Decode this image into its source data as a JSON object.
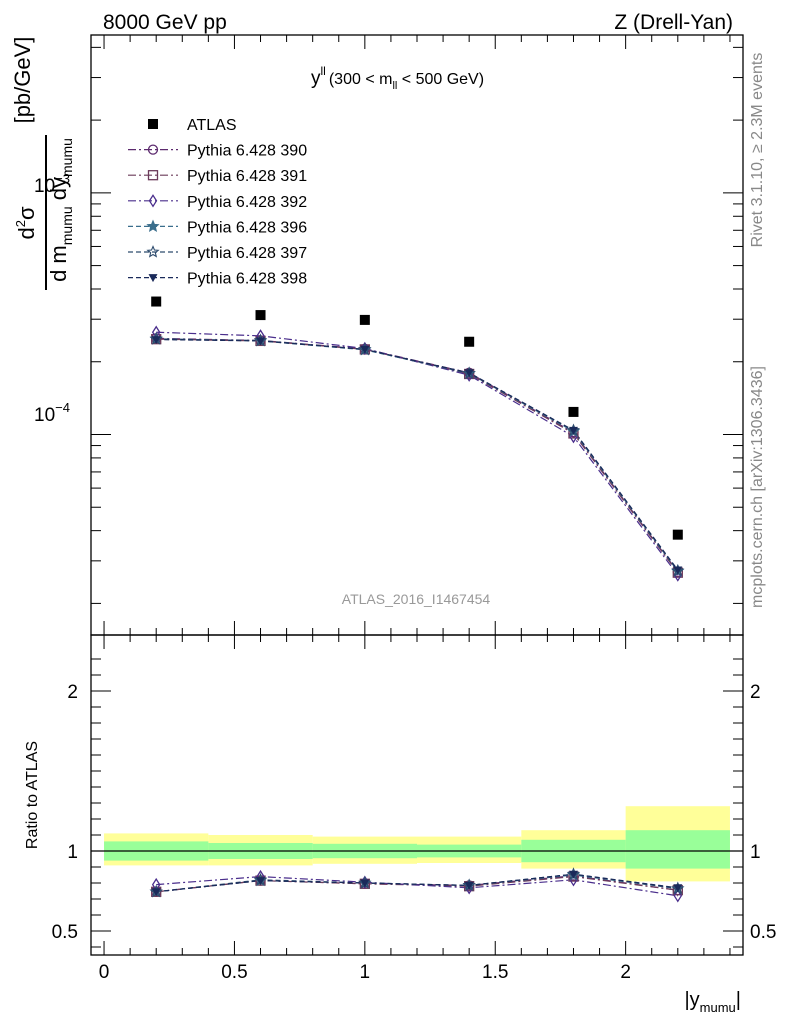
{
  "header": {
    "left": "8000 GeV pp",
    "right": "Z (Drell-Yan)"
  },
  "side_labels": {
    "rivet": "Rivet 3.1.10, ≥ 2.3M events",
    "mcplots": "mcplots.cern.ch [arXiv:1306.3436]"
  },
  "annotation": {
    "y_sym": "y",
    "y_sup": "ll",
    "range_prefix": "(300 < m",
    "range_sub": "ll",
    "range_suffix": " < 500 GeV)",
    "analysis_id": "ATLAS_2016_I1467454"
  },
  "axes": {
    "ylabel_num": "d",
    "ylabel_num_sup": "2",
    "ylabel_num_sym": "σ",
    "ylabel_den": "d m",
    "ylabel_den_sub1": "mumu",
    "ylabel_den_mid": " dy",
    "ylabel_den_sub2": "mumu",
    "ylabel_unit": "[pb/GeV]",
    "ratio_ylabel": "Ratio to ATLAS",
    "xlabel_bar": "|y",
    "xlabel_sub": "mumu",
    "xlabel_end": "|",
    "x_ticks": [
      "0",
      "0.5",
      "1",
      "1.5",
      "2"
    ],
    "ratio_ticks": [
      "0.5",
      "1",
      "2"
    ],
    "main_tick_base": "10",
    "main_tick_exp_3": "−3",
    "main_tick_exp_4": "−4"
  },
  "chart_data": {
    "type": "scatter",
    "x_label": "|y_mumu|",
    "y_scale": "log",
    "xlim": [
      -0.05,
      2.45
    ],
    "ylim": [
      1.48e-05,
      0.0045
    ],
    "ratio_ylim": [
      0.35,
      2.35
    ],
    "ratio_ticks": [
      0.5,
      1,
      2
    ],
    "x_ticks": [
      0,
      0.5,
      1,
      1.5,
      2
    ],
    "x": [
      0.2,
      0.6,
      1.0,
      1.4,
      1.8,
      2.2
    ],
    "bin_edges": [
      0,
      0.4,
      0.8,
      1.2,
      1.6,
      2.0,
      2.4
    ],
    "data": {
      "name": "ATLAS",
      "values": [
        0.000355,
        0.000312,
        0.000298,
        0.000242,
        0.000124,
        3.85e-05
      ],
      "band_stat": [
        [
          0.94,
          1.06
        ],
        [
          0.95,
          1.05
        ],
        [
          0.955,
          1.045
        ],
        [
          0.96,
          1.04
        ],
        [
          0.93,
          1.07
        ],
        [
          0.89,
          1.13
        ]
      ],
      "band_total": [
        [
          0.91,
          1.11
        ],
        [
          0.91,
          1.1
        ],
        [
          0.92,
          1.09
        ],
        [
          0.925,
          1.09
        ],
        [
          0.89,
          1.13
        ],
        [
          0.81,
          1.28
        ]
      ],
      "band_colors": {
        "inner": "#99ff99",
        "outer": "#ffff99"
      }
    },
    "series": [
      {
        "name": "Pythia 6.428 390",
        "color": "#5c2a6e",
        "marker": "circle-open",
        "dash": "8,3,2,3",
        "values": [
          0.00025,
          0.000245,
          0.000226,
          0.00018,
          0.000102,
          2.7e-05
        ],
        "ratio": [
          0.745,
          0.815,
          0.795,
          0.785,
          0.845,
          0.755
        ]
      },
      {
        "name": "Pythia 6.428 391",
        "color": "#6b3b5a",
        "marker": "square-open",
        "dash": "8,3,2,3",
        "values": [
          0.000248,
          0.000244,
          0.000225,
          0.000178,
          0.000101,
          2.68e-05
        ],
        "ratio": [
          0.745,
          0.815,
          0.795,
          0.78,
          0.84,
          0.755
        ]
      },
      {
        "name": "Pythia 6.428 392",
        "color": "#4a2e8c",
        "marker": "diamond-open",
        "dash": "8,3,2,3",
        "values": [
          0.000265,
          0.000256,
          0.000227,
          0.000176,
          9.8e-05,
          2.62e-05
        ],
        "ratio": [
          0.79,
          0.84,
          0.805,
          0.77,
          0.82,
          0.72
        ]
      },
      {
        "name": "Pythia 6.428 396",
        "color": "#3a6e8c",
        "marker": "star-filled",
        "dash": "5,3",
        "values": [
          0.000249,
          0.000244,
          0.000224,
          0.000179,
          0.000103,
          2.72e-05
        ],
        "ratio": [
          0.745,
          0.815,
          0.8,
          0.785,
          0.85,
          0.765
        ]
      },
      {
        "name": "Pythia 6.428 397",
        "color": "#2e4c6e",
        "marker": "star-open",
        "dash": "5,3",
        "values": [
          0.000248,
          0.000245,
          0.000225,
          0.000179,
          0.000104,
          2.73e-05
        ],
        "ratio": [
          0.745,
          0.82,
          0.8,
          0.785,
          0.855,
          0.765
        ]
      },
      {
        "name": "Pythia 6.428 398",
        "color": "#1a2a5a",
        "marker": "triangle-down-filled",
        "dash": "5,3",
        "values": [
          0.000247,
          0.000244,
          0.000225,
          0.00018,
          0.000104,
          2.75e-05
        ],
        "ratio": [
          0.745,
          0.815,
          0.8,
          0.785,
          0.855,
          0.77
        ]
      }
    ]
  }
}
